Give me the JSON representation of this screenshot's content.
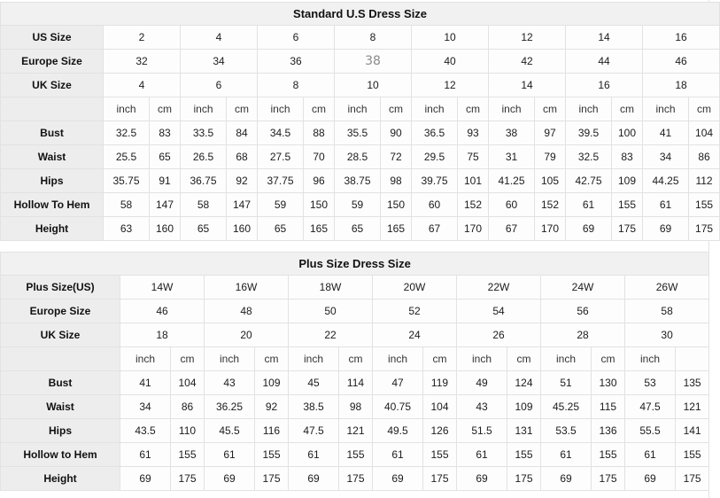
{
  "colors": {
    "border": "#e2e2e2",
    "title_bg": "#f1f1f1",
    "label_bg": "#ededed",
    "cell_bg": "#fdfdfd",
    "text": "#1c1c1c",
    "muted_value": "#8b8b8b"
  },
  "unit_labels": {
    "inch": "inch",
    "cm": "cm"
  },
  "tables": [
    {
      "title": "Standard U.S Dress Size",
      "header_rows": [
        {
          "label": "US Size",
          "values": [
            "2",
            "4",
            "6",
            "8",
            "10",
            "12",
            "14",
            "16"
          ]
        },
        {
          "label": "Europe Size",
          "values": [
            "32",
            "34",
            "36",
            "38",
            "40",
            "42",
            "44",
            "46"
          ],
          "muted_index": 3
        },
        {
          "label": "UK Size",
          "values": [
            "4",
            "6",
            "8",
            "10",
            "12",
            "14",
            "16",
            "18"
          ]
        }
      ],
      "last_cm_blank": false,
      "measure_rows": [
        {
          "label": "Bust",
          "pairs": [
            [
              "32.5",
              "83"
            ],
            [
              "33.5",
              "84"
            ],
            [
              "34.5",
              "88"
            ],
            [
              "35.5",
              "90"
            ],
            [
              "36.5",
              "93"
            ],
            [
              "38",
              "97"
            ],
            [
              "39.5",
              "100"
            ],
            [
              "41",
              "104"
            ]
          ]
        },
        {
          "label": "Waist",
          "pairs": [
            [
              "25.5",
              "65"
            ],
            [
              "26.5",
              "68"
            ],
            [
              "27.5",
              "70"
            ],
            [
              "28.5",
              "72"
            ],
            [
              "29.5",
              "75"
            ],
            [
              "31",
              "79"
            ],
            [
              "32.5",
              "83"
            ],
            [
              "34",
              "86"
            ]
          ]
        },
        {
          "label": "Hips",
          "pairs": [
            [
              "35.75",
              "91"
            ],
            [
              "36.75",
              "92"
            ],
            [
              "37.75",
              "96"
            ],
            [
              "38.75",
              "98"
            ],
            [
              "39.75",
              "101"
            ],
            [
              "41.25",
              "105"
            ],
            [
              "42.75",
              "109"
            ],
            [
              "44.25",
              "112"
            ]
          ]
        },
        {
          "label": "Hollow To Hem",
          "pairs": [
            [
              "58",
              "147"
            ],
            [
              "58",
              "147"
            ],
            [
              "59",
              "150"
            ],
            [
              "59",
              "150"
            ],
            [
              "60",
              "152"
            ],
            [
              "60",
              "152"
            ],
            [
              "61",
              "155"
            ],
            [
              "61",
              "155"
            ]
          ]
        },
        {
          "label": "Height",
          "pairs": [
            [
              "63",
              "160"
            ],
            [
              "65",
              "160"
            ],
            [
              "65",
              "165"
            ],
            [
              "65",
              "165"
            ],
            [
              "67",
              "170"
            ],
            [
              "67",
              "170"
            ],
            [
              "69",
              "175"
            ],
            [
              "69",
              "175"
            ]
          ]
        }
      ]
    },
    {
      "title": "Plus Size Dress Size",
      "header_rows": [
        {
          "label": "Plus Size(US)",
          "values": [
            "14W",
            "16W",
            "18W",
            "20W",
            "22W",
            "24W",
            "26W"
          ]
        },
        {
          "label": "Europe Size",
          "values": [
            "46",
            "48",
            "50",
            "52",
            "54",
            "56",
            "58"
          ]
        },
        {
          "label": "UK Size",
          "values": [
            "18",
            "20",
            "22",
            "24",
            "26",
            "28",
            "30"
          ]
        }
      ],
      "last_cm_blank": true,
      "measure_rows": [
        {
          "label": "Bust",
          "pairs": [
            [
              "41",
              "104"
            ],
            [
              "43",
              "109"
            ],
            [
              "45",
              "114"
            ],
            [
              "47",
              "119"
            ],
            [
              "49",
              "124"
            ],
            [
              "51",
              "130"
            ],
            [
              "53",
              "135"
            ]
          ]
        },
        {
          "label": "Waist",
          "pairs": [
            [
              "34",
              "86"
            ],
            [
              "36.25",
              "92"
            ],
            [
              "38.5",
              "98"
            ],
            [
              "40.75",
              "104"
            ],
            [
              "43",
              "109"
            ],
            [
              "45.25",
              "115"
            ],
            [
              "47.5",
              "121"
            ]
          ]
        },
        {
          "label": "Hips",
          "pairs": [
            [
              "43.5",
              "110"
            ],
            [
              "45.5",
              "116"
            ],
            [
              "47.5",
              "121"
            ],
            [
              "49.5",
              "126"
            ],
            [
              "51.5",
              "131"
            ],
            [
              "53.5",
              "136"
            ],
            [
              "55.5",
              "141"
            ]
          ]
        },
        {
          "label": "Hollow to Hem",
          "pairs": [
            [
              "61",
              "155"
            ],
            [
              "61",
              "155"
            ],
            [
              "61",
              "155"
            ],
            [
              "61",
              "155"
            ],
            [
              "61",
              "155"
            ],
            [
              "61",
              "155"
            ],
            [
              "61",
              "155"
            ]
          ]
        },
        {
          "label": "Height",
          "pairs": [
            [
              "69",
              "175"
            ],
            [
              "69",
              "175"
            ],
            [
              "69",
              "175"
            ],
            [
              "69",
              "175"
            ],
            [
              "69",
              "175"
            ],
            [
              "69",
              "175"
            ],
            [
              "69",
              "175"
            ]
          ]
        }
      ]
    }
  ]
}
